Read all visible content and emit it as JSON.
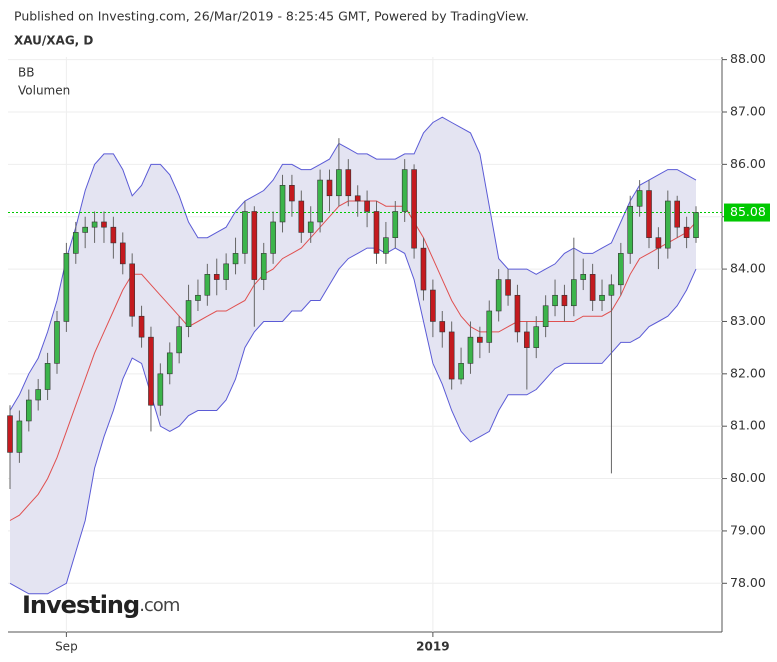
{
  "header": {
    "published": "Published on Investing.com, 26/Mar/2019 - 8:25:45 GMT, Powered by TradingView.",
    "symbol": "XAU/XAG, D"
  },
  "legend": [
    "BB",
    "Volumen"
  ],
  "watermark": {
    "brand": "Investing",
    "suffix": ".com"
  },
  "chart_data": {
    "type": "candlestick",
    "categories": [
      null,
      null,
      null,
      null,
      null,
      null,
      "Sep",
      null,
      null,
      null,
      null,
      null,
      null,
      null,
      null,
      null,
      null,
      null,
      null,
      null,
      null,
      null,
      null,
      null,
      null,
      null,
      null,
      null,
      null,
      null,
      null,
      null,
      null,
      null,
      null,
      null,
      null,
      null,
      null,
      null,
      null,
      null,
      null,
      null,
      null,
      "2019",
      null,
      null,
      null,
      null,
      null,
      null,
      null,
      null,
      null,
      null,
      null,
      null,
      null,
      null,
      null,
      null,
      null,
      null,
      null,
      null,
      null,
      null,
      null,
      null,
      null,
      null,
      null,
      null
    ],
    "open": [
      81.2,
      80.5,
      81.1,
      81.5,
      81.7,
      82.2,
      83.0,
      84.3,
      84.7,
      84.8,
      84.9,
      84.8,
      84.5,
      84.1,
      83.1,
      82.7,
      81.4,
      82.0,
      82.4,
      82.9,
      83.4,
      83.5,
      83.9,
      83.8,
      84.1,
      84.3,
      85.1,
      83.8,
      84.3,
      84.9,
      85.6,
      85.3,
      84.7,
      84.9,
      85.7,
      85.4,
      85.9,
      85.4,
      85.3,
      85.1,
      84.3,
      84.6,
      85.1,
      85.9,
      84.4,
      83.6,
      83.0,
      82.8,
      81.9,
      82.2,
      82.7,
      82.6,
      83.2,
      83.8,
      83.5,
      82.8,
      82.5,
      82.9,
      83.3,
      83.5,
      83.3,
      83.8,
      83.9,
      83.4,
      83.5,
      83.7,
      84.3,
      85.2,
      85.5,
      84.6,
      84.4,
      85.3,
      84.8,
      84.6
    ],
    "high": [
      81.4,
      81.3,
      81.7,
      81.9,
      82.4,
      83.2,
      84.5,
      84.9,
      85.0,
      85.1,
      85.1,
      85.0,
      84.7,
      84.3,
      83.3,
      82.9,
      82.2,
      82.6,
      83.1,
      83.7,
      83.8,
      84.1,
      84.2,
      84.3,
      84.6,
      85.3,
      85.2,
      84.5,
      85.1,
      85.8,
      85.8,
      85.5,
      85.2,
      85.9,
      85.9,
      86.5,
      86.1,
      85.6,
      85.5,
      85.3,
      84.9,
      85.3,
      86.1,
      86.0,
      84.6,
      83.8,
      83.2,
      83.0,
      82.5,
      83.0,
      82.9,
      83.4,
      84.0,
      84.0,
      83.7,
      83.0,
      83.1,
      83.5,
      83.8,
      83.7,
      84.6,
      84.2,
      84.1,
      83.8,
      83.9,
      84.5,
      85.4,
      85.7,
      85.7,
      84.8,
      85.5,
      85.4,
      85.0,
      85.2
    ],
    "low": [
      79.8,
      80.3,
      80.9,
      81.3,
      81.5,
      82.0,
      82.8,
      84.1,
      84.4,
      84.5,
      84.5,
      84.2,
      83.9,
      82.9,
      82.5,
      80.9,
      81.2,
      81.8,
      82.2,
      82.7,
      83.2,
      83.3,
      83.5,
      83.6,
      83.9,
      84.1,
      82.9,
      83.6,
      84.1,
      84.7,
      85.0,
      84.5,
      84.5,
      84.7,
      85.1,
      85.2,
      85.2,
      85.0,
      84.8,
      84.1,
      84.1,
      84.4,
      84.9,
      84.2,
      83.4,
      82.7,
      82.5,
      81.7,
      81.8,
      82.0,
      82.3,
      82.4,
      83.0,
      83.3,
      82.6,
      81.7,
      82.3,
      82.7,
      83.1,
      83.0,
      83.1,
      83.6,
      83.2,
      83.2,
      80.1,
      83.5,
      84.1,
      85.0,
      84.4,
      84.0,
      84.2,
      84.6,
      84.4,
      84.5
    ],
    "close": [
      80.5,
      81.1,
      81.5,
      81.7,
      82.2,
      83.0,
      84.3,
      84.7,
      84.8,
      84.9,
      84.8,
      84.5,
      84.1,
      83.1,
      82.7,
      81.4,
      82.0,
      82.4,
      82.9,
      83.4,
      83.5,
      83.9,
      83.8,
      84.1,
      84.3,
      85.1,
      83.8,
      84.3,
      84.9,
      85.6,
      85.3,
      84.7,
      84.9,
      85.7,
      85.4,
      85.9,
      85.4,
      85.3,
      85.1,
      84.3,
      84.6,
      85.1,
      85.9,
      84.4,
      83.6,
      83.0,
      82.8,
      81.9,
      82.2,
      82.7,
      82.6,
      83.2,
      83.8,
      83.5,
      82.8,
      82.5,
      82.9,
      83.3,
      83.5,
      83.3,
      83.8,
      83.9,
      83.4,
      83.5,
      83.7,
      84.3,
      85.2,
      85.5,
      84.6,
      84.4,
      85.3,
      84.8,
      84.6,
      85.08
    ],
    "up_color": "#3cb44b",
    "down_color": "#c41a1f",
    "bollinger": {
      "upper": [
        81.3,
        81.6,
        82.0,
        82.3,
        82.8,
        83.4,
        84.2,
        84.8,
        85.5,
        86.0,
        86.2,
        86.2,
        85.9,
        85.4,
        85.6,
        86.0,
        86.0,
        85.8,
        85.4,
        84.9,
        84.6,
        84.6,
        84.7,
        84.8,
        85.1,
        85.3,
        85.4,
        85.5,
        85.7,
        86.0,
        86.0,
        85.9,
        85.9,
        86.0,
        86.1,
        86.4,
        86.3,
        86.2,
        86.2,
        86.1,
        86.1,
        86.1,
        86.2,
        86.2,
        86.6,
        86.8,
        86.9,
        86.8,
        86.7,
        86.6,
        86.2,
        85.2,
        84.2,
        84.0,
        84.0,
        84.0,
        83.9,
        84.0,
        84.1,
        84.3,
        84.4,
        84.3,
        84.3,
        84.4,
        84.5,
        84.9,
        85.3,
        85.6,
        85.7,
        85.8,
        85.9,
        85.9,
        85.8,
        85.7
      ],
      "middle": [
        79.2,
        79.3,
        79.5,
        79.7,
        80.0,
        80.4,
        80.9,
        81.4,
        81.9,
        82.4,
        82.8,
        83.2,
        83.6,
        83.9,
        83.9,
        83.7,
        83.5,
        83.3,
        83.1,
        82.9,
        83.0,
        83.1,
        83.2,
        83.2,
        83.3,
        83.4,
        83.7,
        83.9,
        84.0,
        84.2,
        84.3,
        84.4,
        84.6,
        84.8,
        85.0,
        85.2,
        85.3,
        85.3,
        85.3,
        85.3,
        85.2,
        85.2,
        85.2,
        84.9,
        84.6,
        84.2,
        83.8,
        83.4,
        83.1,
        82.9,
        82.8,
        82.8,
        82.8,
        82.9,
        83.0,
        83.0,
        83.0,
        83.0,
        83.0,
        83.0,
        83.0,
        83.1,
        83.1,
        83.1,
        83.2,
        83.5,
        83.9,
        84.2,
        84.3,
        84.4,
        84.5,
        84.6,
        84.7,
        84.9
      ],
      "lower": [
        78.0,
        77.9,
        77.8,
        77.8,
        77.8,
        77.9,
        78.0,
        78.6,
        79.2,
        80.2,
        80.8,
        81.3,
        81.9,
        82.3,
        82.2,
        81.6,
        81.0,
        80.9,
        81.0,
        81.2,
        81.3,
        81.3,
        81.3,
        81.5,
        81.9,
        82.5,
        82.8,
        83.0,
        83.0,
        83.0,
        83.2,
        83.2,
        83.4,
        83.4,
        83.7,
        84.0,
        84.2,
        84.3,
        84.4,
        84.4,
        84.3,
        84.4,
        84.3,
        83.8,
        83.0,
        82.2,
        81.8,
        81.3,
        80.9,
        80.7,
        80.8,
        80.9,
        81.3,
        81.6,
        81.6,
        81.6,
        81.7,
        81.9,
        82.1,
        82.2,
        82.2,
        82.2,
        82.2,
        82.2,
        82.4,
        82.6,
        82.6,
        82.7,
        82.9,
        83.0,
        83.1,
        83.3,
        83.6,
        84.0
      ],
      "band_color": "#5b5bd6",
      "middle_color": "#e05050",
      "fill": "#e4e4f2"
    },
    "last_price": 85.08,
    "last_price_color": "#00c800",
    "ylim": [
      77.07,
      88.05
    ],
    "yticks": [
      {
        "value": 78,
        "label": "78.00"
      },
      {
        "value": 79,
        "label": "79.00"
      },
      {
        "value": 80,
        "label": "80.00"
      },
      {
        "value": 81,
        "label": "81.00"
      },
      {
        "value": 82,
        "label": "82.00"
      },
      {
        "value": 83,
        "label": "83.00"
      },
      {
        "value": 84,
        "label": "84.00"
      },
      {
        "value": 85,
        "label": "85.00"
      },
      {
        "value": 86,
        "label": "86.00"
      },
      {
        "value": 87,
        "label": "87.00"
      },
      {
        "value": 88,
        "label": "88.00"
      }
    ],
    "grid": true
  }
}
